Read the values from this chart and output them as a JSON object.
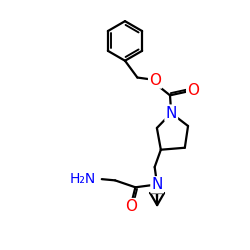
{
  "background_color": "#ffffff",
  "atom_color_N": "#0000ff",
  "atom_color_O": "#ff0000",
  "atom_color_C": "#000000",
  "bond_color": "#000000",
  "bond_lw": 1.6,
  "font_size": 10,
  "figsize": [
    2.5,
    2.5
  ],
  "dpi": 100,
  "xlim": [
    0,
    10
  ],
  "ylim": [
    0,
    10
  ]
}
